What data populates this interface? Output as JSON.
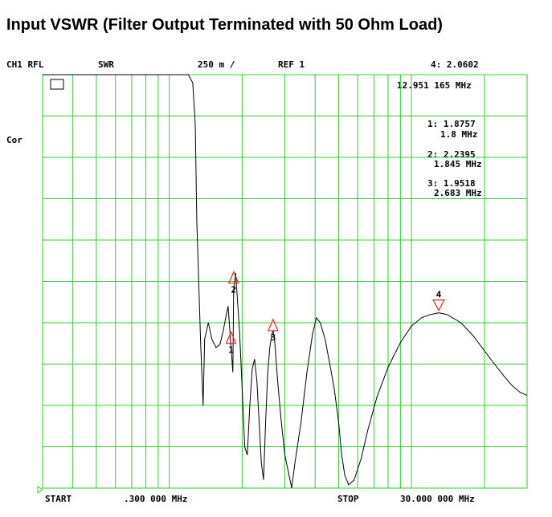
{
  "title": "Input VSWR (Filter Output Terminated with 50 Ohm Load)",
  "header": {
    "channel": "CH1 RFL",
    "format": "SWR",
    "scale": "250 m /",
    "ref": "REF 1",
    "active_marker": "4: 2.0602"
  },
  "side_label": "Cor",
  "footer": {
    "start_label": "START",
    "start_value": ".300 000 MHz",
    "stop_label": "STOP",
    "stop_value": "30.000 000 MHz"
  },
  "colors": {
    "grid": "#33cc33",
    "marker": "#ee2222",
    "trace": "#000000"
  },
  "chart_data": {
    "type": "line",
    "title": "Input VSWR (Filter Output Terminated with 50 Ohm Load)",
    "xlabel": "",
    "ylabel": "",
    "x_unit": "MHz",
    "xlim": [
      0.3,
      30.0
    ],
    "ylim": [
      1.0,
      3.5
    ],
    "y_per_division": 0.25,
    "grid": true,
    "legend": "none",
    "series": [
      {
        "x": [
          0.3,
          1.2,
          1.25,
          1.28,
          1.3,
          1.35,
          1.38,
          1.4,
          1.45,
          1.5,
          1.56,
          1.62,
          1.67,
          1.72,
          1.75,
          1.78,
          1.8,
          1.82,
          1.83,
          1.845,
          1.88,
          1.95,
          2.0,
          2.05,
          2.1,
          2.15,
          2.2,
          2.25,
          2.3,
          2.35,
          2.4,
          2.45,
          2.5,
          2.55,
          2.6,
          2.65,
          2.683,
          2.72,
          2.8,
          2.9,
          3.0,
          3.1,
          3.2,
          3.3,
          3.5,
          3.7,
          3.9,
          4.05,
          4.2,
          4.4,
          4.6,
          4.8,
          5.0,
          5.15,
          5.3,
          5.5,
          5.8,
          6.2,
          6.6,
          7.2,
          8.0,
          9.0,
          10.0,
          11.0,
          12.0,
          12.951,
          14.0,
          16.0,
          18.0,
          20.0,
          22.0,
          24.0,
          26.0,
          28.0,
          30.0
        ],
        "y": [
          3.5,
          3.5,
          3.45,
          3.2,
          2.6,
          1.85,
          1.5,
          1.9,
          2.0,
          1.9,
          1.85,
          1.87,
          1.95,
          2.05,
          2.1,
          1.95,
          1.85,
          1.75,
          1.7,
          2.2,
          2.3,
          1.95,
          1.6,
          1.25,
          1.2,
          1.5,
          1.72,
          1.78,
          1.65,
          1.4,
          1.15,
          1.05,
          1.4,
          1.7,
          1.85,
          1.93,
          1.95,
          1.9,
          1.65,
          1.4,
          1.2,
          1.1,
          1.0,
          1.15,
          1.4,
          1.7,
          1.93,
          2.03,
          2.0,
          1.9,
          1.75,
          1.6,
          1.4,
          1.2,
          1.08,
          1.02,
          1.05,
          1.18,
          1.35,
          1.55,
          1.73,
          1.88,
          1.98,
          2.03,
          2.05,
          2.06,
          2.05,
          2.0,
          1.92,
          1.83,
          1.75,
          1.68,
          1.62,
          1.58,
          1.56
        ]
      }
    ],
    "markers": [
      {
        "label": "1",
        "readout": "1: 1.8757",
        "freq": "1.8 MHz",
        "x": 1.8,
        "y": 1.8757,
        "symbol": "triangle-up"
      },
      {
        "label": "2",
        "readout": "2: 2.2395",
        "freq": "1.845 MHz",
        "x": 1.845,
        "y": 2.2395,
        "symbol": "triangle-up"
      },
      {
        "label": "3",
        "readout": "3: 1.9518",
        "freq": "2.683 MHz",
        "x": 2.683,
        "y": 1.9518,
        "symbol": "triangle-up"
      },
      {
        "label": "4",
        "readout": "4: 2.0602",
        "freq": "12.951 165 MHz",
        "x": 12.951,
        "y": 2.0602,
        "symbol": "triangle-down"
      }
    ]
  }
}
